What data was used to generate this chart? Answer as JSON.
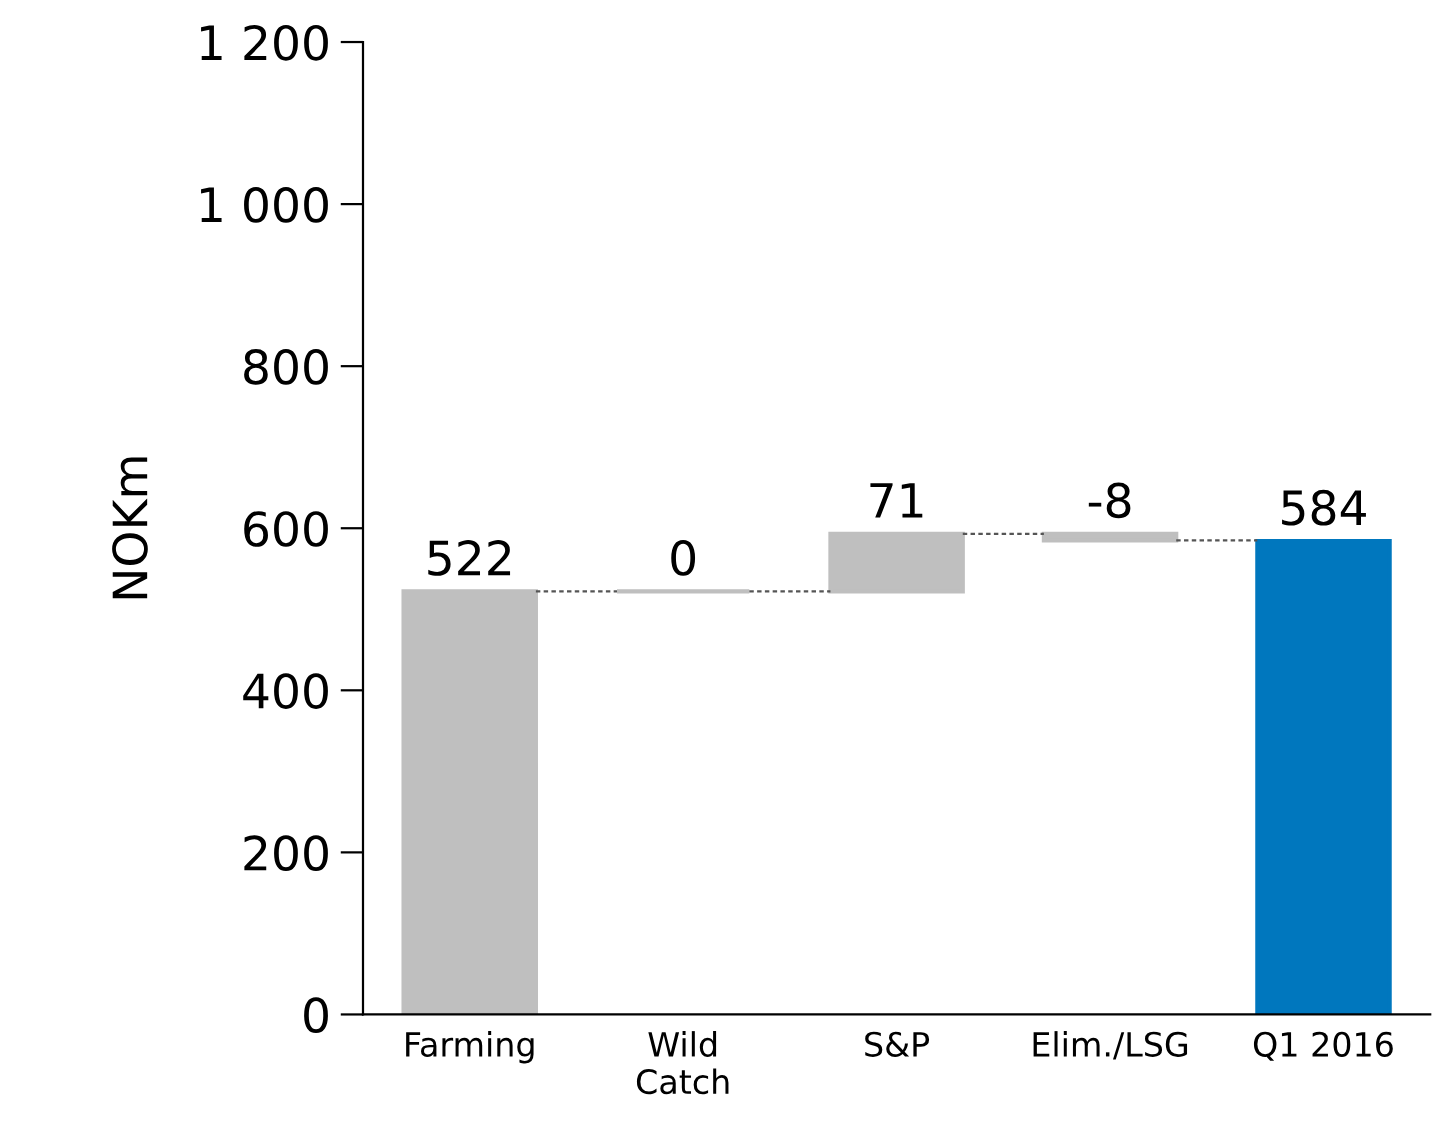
{
  "chart_data": {
    "type": "bar",
    "ylabel": "NOKm",
    "categories": [
      "Farming",
      "Wild\nCatch",
      "S&P",
      "Elim./LSG",
      "Q1 2016"
    ],
    "values": [
      522,
      0,
      71,
      -8,
      584
    ],
    "base": [
      0,
      522,
      522,
      593,
      0
    ],
    "colors": [
      "#bfbfbf",
      "#bfbfbf",
      "#bfbfbf",
      "#bfbfbf",
      "#0077be"
    ],
    "ylim": [
      0,
      1200
    ],
    "yticks": [
      0,
      200,
      400,
      600,
      800,
      {
        "value": 1000,
        "label": "1 000"
      },
      {
        "value": 1200,
        "label": "1 200"
      }
    ],
    "data_labels": true,
    "grid": false,
    "legend": false
  }
}
